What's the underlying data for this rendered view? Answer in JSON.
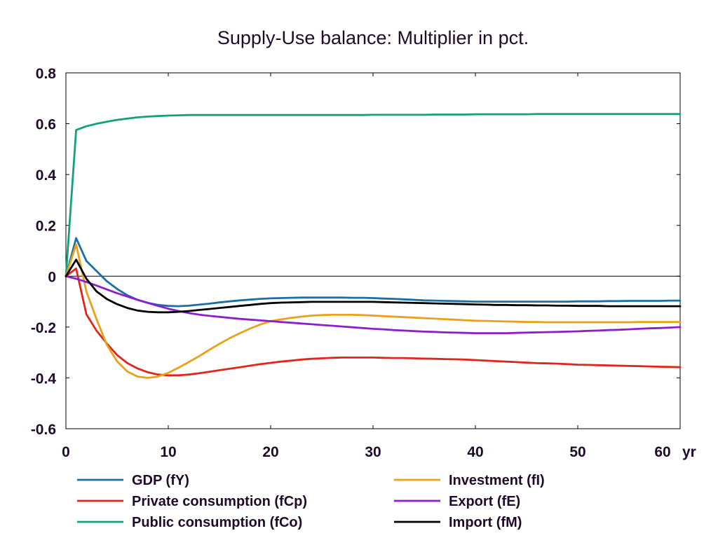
{
  "chart_data": {
    "type": "line",
    "title": "Supply-Use balance: Multiplier in pct.",
    "xlabel": "",
    "ylabel": "",
    "x_unit_label": "yr",
    "xlim": [
      0,
      60
    ],
    "ylim": [
      -0.6,
      0.8
    ],
    "x_ticks": [
      0,
      10,
      20,
      30,
      40,
      50,
      60
    ],
    "x_tick_labels": [
      "0",
      "10",
      "20",
      "30",
      "40",
      "50",
      "60"
    ],
    "y_ticks": [
      -0.6,
      -0.4,
      -0.2,
      0,
      0.2,
      0.4,
      0.6,
      0.8
    ],
    "y_tick_labels": [
      "-0.6",
      "-0.4",
      "-0.2",
      "0",
      "0.2",
      "0.4",
      "0.6",
      "0.8"
    ],
    "grid": false,
    "zero_line": true,
    "legend_position": "bottom",
    "x": [
      0,
      1,
      2,
      3,
      4,
      5,
      6,
      7,
      8,
      9,
      10,
      11,
      12,
      13,
      14,
      15,
      16,
      17,
      18,
      19,
      20,
      21,
      22,
      23,
      24,
      25,
      26,
      27,
      28,
      29,
      30,
      31,
      32,
      33,
      34,
      35,
      36,
      37,
      38,
      39,
      40,
      41,
      42,
      43,
      44,
      45,
      46,
      47,
      48,
      49,
      50,
      51,
      52,
      53,
      54,
      55,
      56,
      57,
      58,
      59,
      60
    ],
    "series": [
      {
        "name": "GDP (fY)",
        "color": "#1a6fa6",
        "values": [
          0,
          0.15,
          0.06,
          0.02,
          -0.02,
          -0.05,
          -0.075,
          -0.093,
          -0.105,
          -0.113,
          -0.117,
          -0.118,
          -0.116,
          -0.112,
          -0.108,
          -0.103,
          -0.099,
          -0.095,
          -0.092,
          -0.089,
          -0.087,
          -0.086,
          -0.085,
          -0.084,
          -0.084,
          -0.084,
          -0.084,
          -0.084,
          -0.085,
          -0.085,
          -0.086,
          -0.088,
          -0.089,
          -0.091,
          -0.093,
          -0.095,
          -0.096,
          -0.097,
          -0.098,
          -0.099,
          -0.1,
          -0.1,
          -0.1,
          -0.1,
          -0.1,
          -0.1,
          -0.1,
          -0.1,
          -0.1,
          -0.1,
          -0.099,
          -0.099,
          -0.099,
          -0.098,
          -0.098,
          -0.097,
          -0.097,
          -0.097,
          -0.097,
          -0.096,
          -0.096
        ]
      },
      {
        "name": "Private consumption (fCp)",
        "color": "#e0251b",
        "values": [
          0,
          0.03,
          -0.15,
          -0.215,
          -0.265,
          -0.31,
          -0.342,
          -0.363,
          -0.378,
          -0.387,
          -0.39,
          -0.39,
          -0.387,
          -0.382,
          -0.376,
          -0.37,
          -0.364,
          -0.358,
          -0.352,
          -0.346,
          -0.341,
          -0.336,
          -0.332,
          -0.328,
          -0.325,
          -0.323,
          -0.321,
          -0.32,
          -0.32,
          -0.32,
          -0.32,
          -0.321,
          -0.322,
          -0.322,
          -0.323,
          -0.324,
          -0.325,
          -0.326,
          -0.327,
          -0.328,
          -0.33,
          -0.332,
          -0.334,
          -0.336,
          -0.338,
          -0.34,
          -0.342,
          -0.343,
          -0.344,
          -0.346,
          -0.348,
          -0.349,
          -0.35,
          -0.351,
          -0.352,
          -0.353,
          -0.354,
          -0.355,
          -0.356,
          -0.357,
          -0.358
        ]
      },
      {
        "name": "Public consumption (fCo)",
        "color": "#15a07c",
        "values": [
          0,
          0.575,
          0.59,
          0.6,
          0.608,
          0.615,
          0.62,
          0.625,
          0.628,
          0.63,
          0.632,
          0.633,
          0.634,
          0.634,
          0.634,
          0.634,
          0.634,
          0.634,
          0.634,
          0.634,
          0.634,
          0.634,
          0.634,
          0.634,
          0.634,
          0.634,
          0.634,
          0.634,
          0.634,
          0.634,
          0.635,
          0.635,
          0.635,
          0.635,
          0.635,
          0.635,
          0.636,
          0.636,
          0.636,
          0.636,
          0.637,
          0.637,
          0.637,
          0.637,
          0.637,
          0.637,
          0.638,
          0.638,
          0.638,
          0.638,
          0.638,
          0.638,
          0.638,
          0.638,
          0.638,
          0.638,
          0.638,
          0.638,
          0.638,
          0.638,
          0.638
        ]
      },
      {
        "name": "Investment (fI)",
        "color": "#e8a21a",
        "values": [
          0,
          0.125,
          -0.06,
          -0.17,
          -0.27,
          -0.335,
          -0.375,
          -0.395,
          -0.4,
          -0.395,
          -0.38,
          -0.36,
          -0.338,
          -0.315,
          -0.29,
          -0.266,
          -0.244,
          -0.224,
          -0.206,
          -0.19,
          -0.177,
          -0.17,
          -0.164,
          -0.159,
          -0.155,
          -0.153,
          -0.152,
          -0.152,
          -0.152,
          -0.153,
          -0.155,
          -0.157,
          -0.159,
          -0.161,
          -0.163,
          -0.165,
          -0.167,
          -0.169,
          -0.171,
          -0.173,
          -0.175,
          -0.176,
          -0.177,
          -0.178,
          -0.179,
          -0.18,
          -0.18,
          -0.181,
          -0.181,
          -0.181,
          -0.181,
          -0.181,
          -0.181,
          -0.181,
          -0.181,
          -0.181,
          -0.18,
          -0.18,
          -0.18,
          -0.18,
          -0.18
        ]
      },
      {
        "name": "Export (fE)",
        "color": "#8b1fc9",
        "values": [
          0,
          -0.01,
          -0.023,
          -0.037,
          -0.052,
          -0.067,
          -0.08,
          -0.093,
          -0.105,
          -0.117,
          -0.128,
          -0.137,
          -0.145,
          -0.151,
          -0.156,
          -0.16,
          -0.164,
          -0.168,
          -0.171,
          -0.174,
          -0.177,
          -0.18,
          -0.183,
          -0.186,
          -0.189,
          -0.192,
          -0.195,
          -0.198,
          -0.201,
          -0.204,
          -0.207,
          -0.209,
          -0.212,
          -0.214,
          -0.216,
          -0.218,
          -0.219,
          -0.221,
          -0.222,
          -0.223,
          -0.224,
          -0.224,
          -0.224,
          -0.224,
          -0.223,
          -0.222,
          -0.221,
          -0.22,
          -0.219,
          -0.218,
          -0.217,
          -0.215,
          -0.214,
          -0.212,
          -0.211,
          -0.209,
          -0.207,
          -0.205,
          -0.204,
          -0.202,
          -0.2
        ]
      },
      {
        "name": "Import (fM)",
        "color": "#000000",
        "values": [
          0,
          0.065,
          -0.01,
          -0.06,
          -0.09,
          -0.11,
          -0.125,
          -0.135,
          -0.14,
          -0.142,
          -0.142,
          -0.14,
          -0.137,
          -0.133,
          -0.129,
          -0.125,
          -0.121,
          -0.117,
          -0.113,
          -0.109,
          -0.106,
          -0.104,
          -0.103,
          -0.102,
          -0.101,
          -0.101,
          -0.101,
          -0.101,
          -0.101,
          -0.101,
          -0.101,
          -0.102,
          -0.103,
          -0.104,
          -0.105,
          -0.106,
          -0.107,
          -0.108,
          -0.109,
          -0.11,
          -0.111,
          -0.112,
          -0.113,
          -0.113,
          -0.114,
          -0.114,
          -0.115,
          -0.115,
          -0.116,
          -0.116,
          -0.117,
          -0.117,
          -0.117,
          -0.118,
          -0.118,
          -0.118,
          -0.118,
          -0.118,
          -0.118,
          -0.118,
          -0.118
        ]
      }
    ],
    "legend_layout": [
      [
        "GDP (fY)",
        "Investment (fI)"
      ],
      [
        "Private consumption (fCp)",
        "Export (fE)"
      ],
      [
        "Public consumption (fCo)",
        "Import (fM)"
      ]
    ]
  }
}
